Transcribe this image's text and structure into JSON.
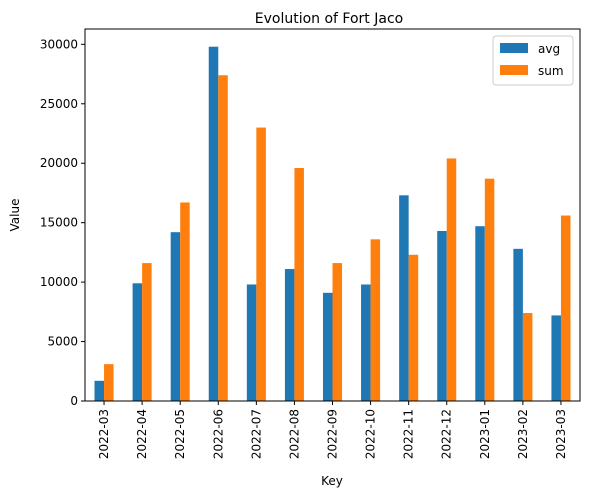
{
  "chart_data": {
    "type": "bar",
    "title": "Evolution of Fort Jaco",
    "xlabel": "Key",
    "ylabel": "Value",
    "categories": [
      "2022-03",
      "2022-04",
      "2022-05",
      "2022-06",
      "2022-07",
      "2022-08",
      "2022-09",
      "2022-10",
      "2022-11",
      "2022-12",
      "2023-01",
      "2023-02",
      "2023-03"
    ],
    "series": [
      {
        "name": "avg",
        "color": "#1f77b4",
        "values": [
          1700,
          9900,
          14200,
          29800,
          9800,
          11100,
          9100,
          9800,
          17300,
          14300,
          14700,
          12800,
          7200
        ]
      },
      {
        "name": "sum",
        "color": "#ff7f0e",
        "values": [
          3100,
          11600,
          16700,
          27400,
          23000,
          19600,
          11600,
          13600,
          12300,
          20400,
          18700,
          7400,
          15600
        ]
      }
    ],
    "ylim": [
      0,
      31290
    ],
    "yticks": [
      0,
      5000,
      10000,
      15000,
      20000,
      25000,
      30000
    ],
    "legend_position": "top-right",
    "grid": false
  }
}
